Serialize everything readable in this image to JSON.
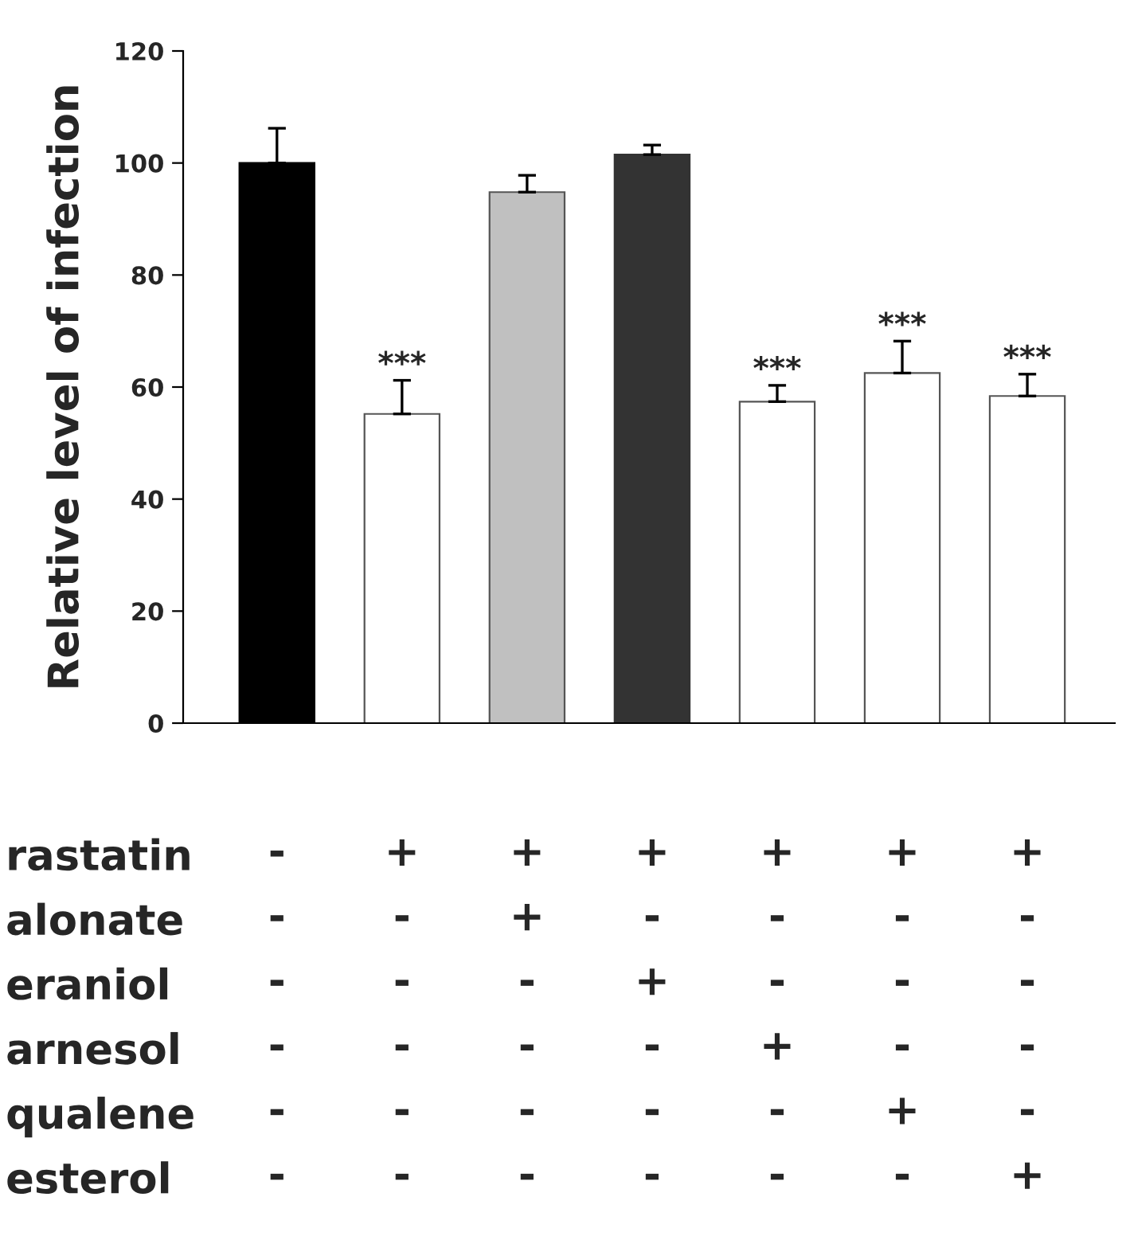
{
  "chart_data": {
    "type": "bar",
    "ylabel": "Relative level of infection",
    "categories": [
      "-\n-\n-\n-\n-\n-",
      "+\n-\n-\n-\n-\n-",
      "+\n+\n-\n-\n-\n-",
      "+\n-\n+\n-\n-\n-",
      "+\n-\n-\n+\n-\n-",
      "+\n-\n-\n-\n+\n-",
      "+\n-\n-\n-\n-\n+"
    ],
    "values": [
      100,
      55.2,
      94.8,
      101.5,
      57.4,
      62.5,
      58.4
    ],
    "colors": [
      "#000000",
      "#ffffff",
      "#c0c0c0",
      "#333333",
      "#ffffff",
      "#ffffff",
      "#ffffff"
    ],
    "errors": [
      [
        100,
        106.2
      ],
      [
        55.2,
        61.2
      ],
      [
        94.8,
        97.8
      ],
      [
        101.5,
        103.2
      ],
      [
        57.4,
        60.3
      ],
      [
        62.5,
        68.2
      ],
      [
        58.4,
        62.3
      ]
    ],
    "ylim": [
      0,
      120
    ],
    "yticks": [
      0,
      20,
      40,
      60,
      80,
      100,
      120
    ],
    "grid": false,
    "annotations": [
      {
        "text": "***",
        "x": "+\n-\n-\n-\n-\n-",
        "y": 61.2
      },
      {
        "text": "***",
        "x": "+\n-\n-\n+\n-\n-",
        "y": 60.3
      },
      {
        "text": "***",
        "x": "+\n-\n-\n-\n+\n-",
        "y": 68.2
      },
      {
        "text": "***",
        "x": "+\n-\n-\n-\n-\n+",
        "y": 62.3
      },
      "rastatin",
      "alonate",
      "eraniol",
      "arnesol",
      "qualene",
      "esterol"
    ]
  }
}
